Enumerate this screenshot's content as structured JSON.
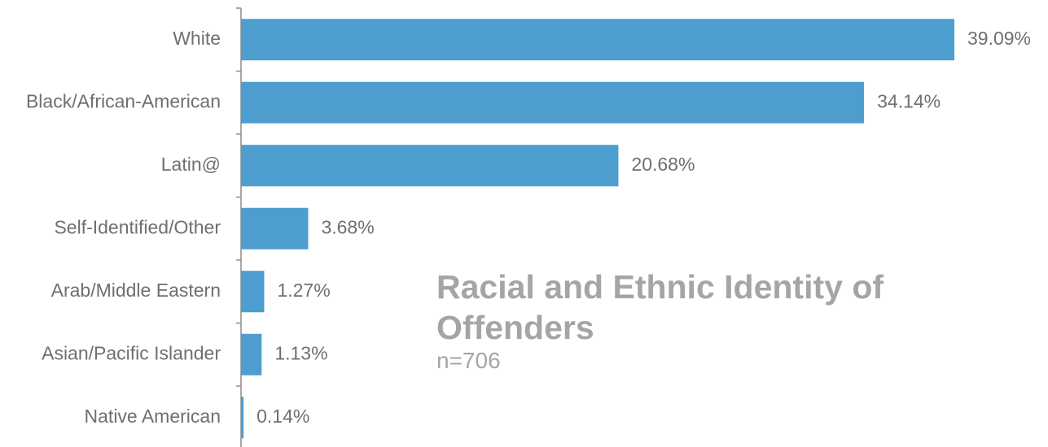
{
  "chart_data": {
    "type": "bar",
    "orientation": "horizontal",
    "title": "Racial and Ethnic Identity of Offenders",
    "subtitle": "n=706",
    "categories": [
      "White",
      "Black/African-American",
      "Latin@",
      "Self-Identified/Other",
      "Arab/Middle Eastern",
      "Asian/Pacific Islander",
      "Native American"
    ],
    "values": [
      39.09,
      34.14,
      20.68,
      3.68,
      1.27,
      1.13,
      0.14
    ],
    "value_labels": [
      "39.09%",
      "34.14%",
      "20.68%",
      "3.68%",
      "1.27%",
      "1.13%",
      "0.14%"
    ],
    "xlim": [
      0,
      39.09
    ],
    "unit": "%",
    "grid": false,
    "legend": "none",
    "bar_color": "#4e9dcf",
    "axis_color": "#8c8c8c",
    "label_color": "#6f6f6f",
    "title_color": "#a5a5a5"
  }
}
